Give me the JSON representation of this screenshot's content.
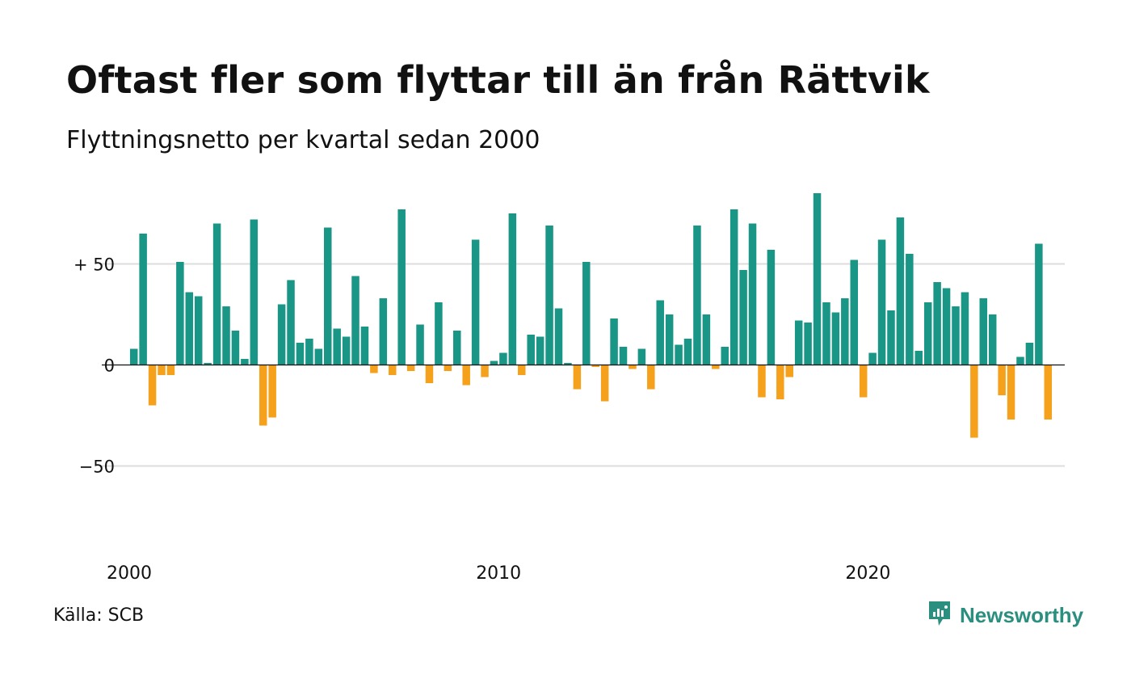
{
  "title": "Oftast fler som flyttar till än från Rättvik",
  "subtitle": "Flyttningsnetto per kvartal sedan 2000",
  "source": "Källa: SCB",
  "brand": {
    "name": "Newsworthy",
    "icon": "newsworthy-logo-icon",
    "color": "#2a8f7f"
  },
  "chart_data": {
    "type": "bar",
    "x_unit": "quarter",
    "start": "2000 Q1",
    "ylim": [
      -100,
      90
    ],
    "y_ticks": [
      {
        "value": 50,
        "label": "+ 50"
      },
      {
        "value": 0,
        "label": "0"
      },
      {
        "value": -50,
        "label": "−50"
      }
    ],
    "x_ticks": [
      {
        "index": 0,
        "label": "2000"
      },
      {
        "index": 40,
        "label": "2010"
      },
      {
        "index": 80,
        "label": "2020"
      }
    ],
    "grid": true,
    "colors": {
      "positive": "#1a9687",
      "negative": "#f5a11c",
      "grid": "#dddddd",
      "zero": "#111111"
    },
    "values": [
      8,
      65,
      -20,
      -5,
      -5,
      51,
      36,
      34,
      1,
      70,
      29,
      17,
      3,
      72,
      -30,
      -26,
      30,
      42,
      11,
      13,
      8,
      68,
      18,
      14,
      44,
      19,
      -4,
      33,
      -5,
      77,
      -3,
      20,
      -9,
      31,
      -3,
      17,
      -10,
      62,
      -6,
      2,
      6,
      75,
      -5,
      15,
      14,
      69,
      28,
      1,
      -12,
      51,
      -1,
      -18,
      23,
      9,
      -2,
      8,
      -12,
      32,
      25,
      10,
      13,
      69,
      25,
      -2,
      9,
      77,
      47,
      70,
      -16,
      57,
      -17,
      -6,
      22,
      21,
      85,
      31,
      26,
      33,
      52,
      -16,
      6,
      62,
      27,
      73,
      55,
      7,
      31,
      41,
      38,
      29,
      36,
      -36,
      33,
      25,
      -15,
      -27,
      4,
      11,
      60,
      -27
    ]
  }
}
